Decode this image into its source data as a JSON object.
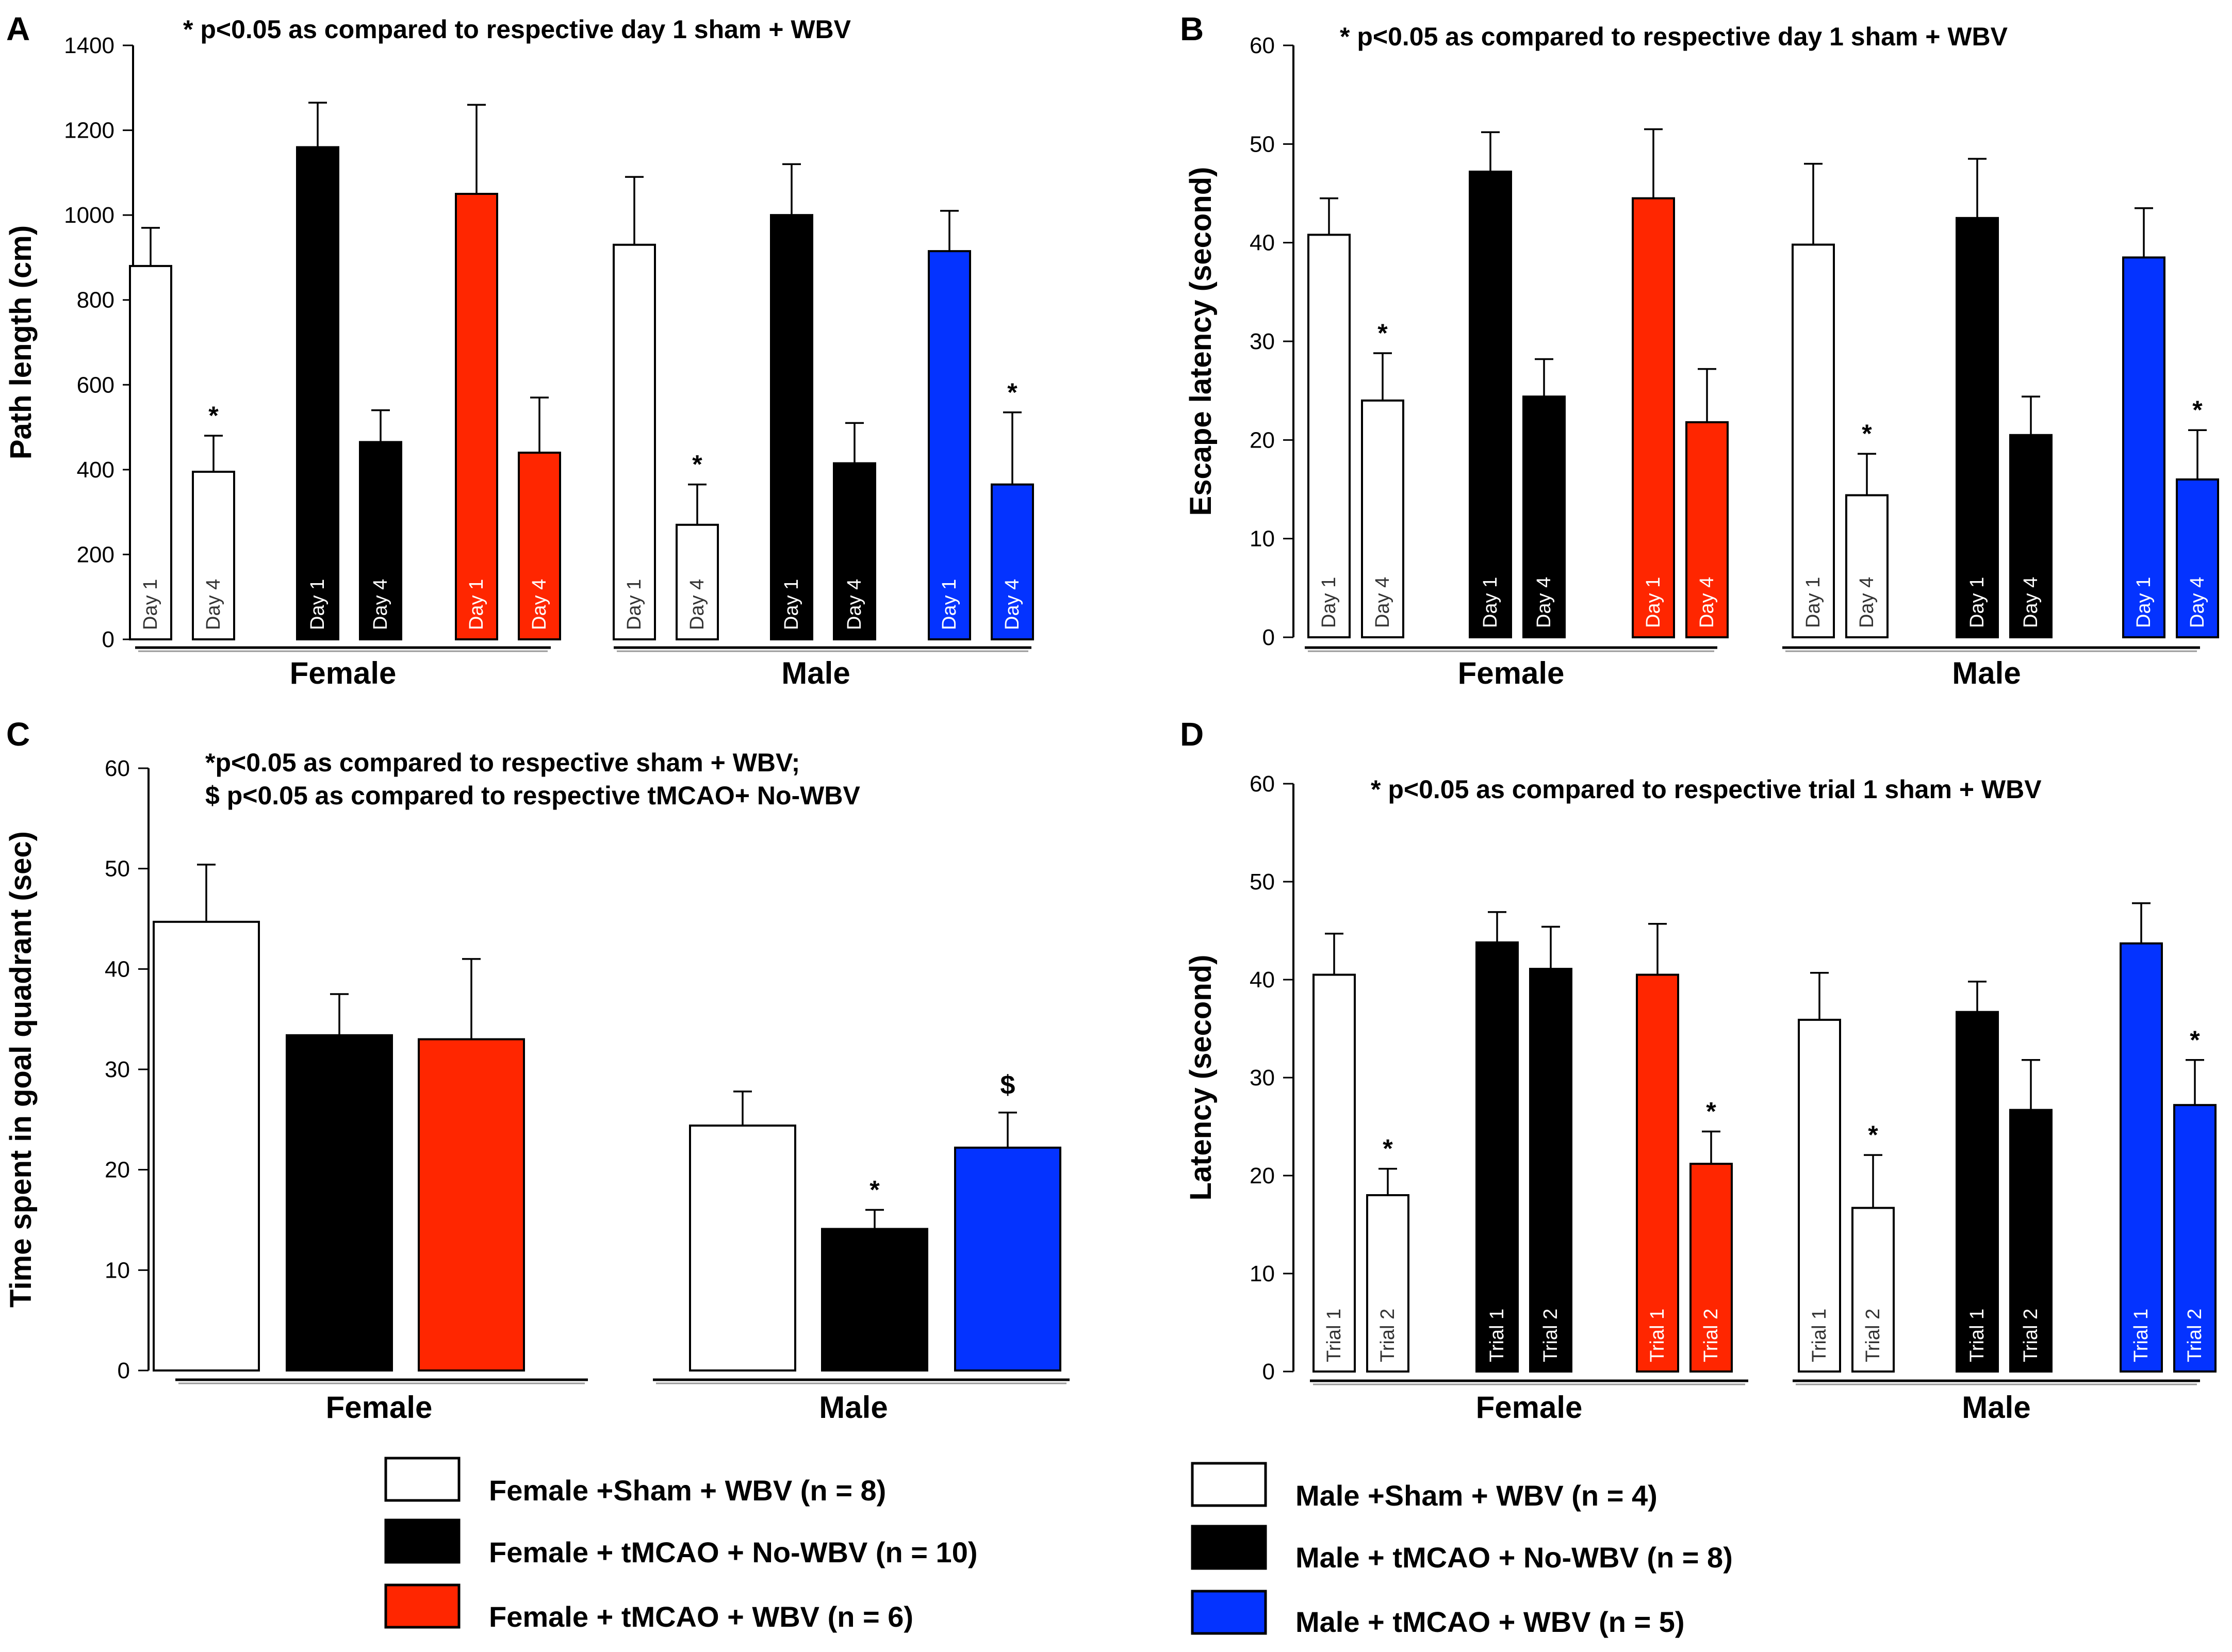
{
  "colors": {
    "white": "#ffffff",
    "black": "#000000",
    "red": "#ff2600",
    "blue": "#0433ff"
  },
  "chart_data": [
    {
      "panel": "A",
      "type": "bar",
      "note": "* p<0.05 as compared to respective  day 1 sham + WBV",
      "ylabel": "Path length (cm)",
      "ylim": [
        0,
        1400
      ],
      "yticks": [
        "0",
        "200",
        "400",
        "600",
        "800",
        "1000",
        "1200",
        "1400"
      ],
      "groups": [
        "Female",
        "Male"
      ],
      "bars": [
        {
          "label": "Day 1",
          "value": 880,
          "error": 90,
          "color": "white",
          "star": ""
        },
        {
          "label": "Day 4",
          "value": 395,
          "error": 85,
          "color": "white",
          "star": "*"
        },
        {
          "label": "Day 1",
          "value": 1160,
          "error": 105,
          "color": "black",
          "star": ""
        },
        {
          "label": "Day 4",
          "value": 465,
          "error": 75,
          "color": "black",
          "star": ""
        },
        {
          "label": "Day 1",
          "value": 1050,
          "error": 210,
          "color": "red",
          "star": ""
        },
        {
          "label": "Day 4",
          "value": 440,
          "error": 130,
          "color": "red",
          "star": ""
        },
        {
          "label": "Day 1",
          "value": 930,
          "error": 160,
          "color": "white",
          "star": ""
        },
        {
          "label": "Day 4",
          "value": 270,
          "error": 95,
          "color": "white",
          "star": "*"
        },
        {
          "label": "Day 1",
          "value": 1000,
          "error": 120,
          "color": "black",
          "star": ""
        },
        {
          "label": "Day 4",
          "value": 415,
          "error": 95,
          "color": "black",
          "star": ""
        },
        {
          "label": "Day 1",
          "value": 915,
          "error": 95,
          "color": "blue",
          "star": ""
        },
        {
          "label": "Day 4",
          "value": 365,
          "error": 170,
          "color": "blue",
          "star": "*"
        }
      ]
    },
    {
      "panel": "B",
      "type": "bar",
      "note": "* p<0.05 as compared to respective  day 1 sham + WBV",
      "ylabel": "Escape latency (second)",
      "ylim": [
        0,
        60
      ],
      "yticks": [
        "0",
        "10",
        "20",
        "30",
        "40",
        "50",
        "60"
      ],
      "groups": [
        "Female",
        "Male"
      ],
      "bars": [
        {
          "label": "Day 1",
          "value": 40.8,
          "error": 3.7,
          "color": "white",
          "star": ""
        },
        {
          "label": "Day 4",
          "value": 24,
          "error": 4.8,
          "color": "white",
          "star": "*"
        },
        {
          "label": "Day 1",
          "value": 47.2,
          "error": 4.0,
          "color": "black",
          "star": ""
        },
        {
          "label": "Day 4",
          "value": 24.4,
          "error": 3.8,
          "color": "black",
          "star": ""
        },
        {
          "label": "Day 1",
          "value": 44.5,
          "error": 7.0,
          "color": "red",
          "star": ""
        },
        {
          "label": "Day 4",
          "value": 21.8,
          "error": 5.4,
          "color": "red",
          "star": ""
        },
        {
          "label": "Day 1",
          "value": 39.8,
          "error": 8.2,
          "color": "white",
          "star": ""
        },
        {
          "label": "Day 4",
          "value": 14.4,
          "error": 4.2,
          "color": "white",
          "star": "*"
        },
        {
          "label": "Day 1",
          "value": 42.5,
          "error": 6.0,
          "color": "black",
          "star": ""
        },
        {
          "label": "Day 4",
          "value": 20.5,
          "error": 3.9,
          "color": "black",
          "star": ""
        },
        {
          "label": "Day 1",
          "value": 38.5,
          "error": 5.0,
          "color": "blue",
          "star": ""
        },
        {
          "label": "Day 4",
          "value": 16,
          "error": 5.0,
          "color": "blue",
          "star": "*"
        }
      ]
    },
    {
      "panel": "C",
      "type": "bar",
      "note": "*p<0.05 as compared to respective  sham + WBV;",
      "note2": "$ p<0.05 as compared to respective  tMCAO+ No-WBV",
      "ylabel": "Time spent in goal quadrant (sec)",
      "ylim": [
        0,
        60
      ],
      "yticks": [
        "0",
        "10",
        "20",
        "30",
        "40",
        "50",
        "60"
      ],
      "groups": [
        "Female",
        "Male"
      ],
      "bars": [
        {
          "label": "",
          "value": 44.7,
          "error": 5.7,
          "color": "white",
          "star": ""
        },
        {
          "label": "",
          "value": 33.4,
          "error": 4.1,
          "color": "black",
          "star": ""
        },
        {
          "label": "",
          "value": 33.0,
          "error": 8.0,
          "color": "red",
          "star": ""
        },
        {
          "label": "",
          "value": 24.4,
          "error": 3.4,
          "color": "white",
          "star": ""
        },
        {
          "label": "",
          "value": 14.1,
          "error": 1.9,
          "color": "black",
          "star": "*"
        },
        {
          "label": "",
          "value": 22.2,
          "error": 3.5,
          "color": "blue",
          "star": "$"
        }
      ]
    },
    {
      "panel": "D",
      "type": "bar",
      "note": "* p<0.05 as compared to respective  trial 1 sham + WBV",
      "ylabel": "Latency (second)",
      "ylim": [
        0,
        60
      ],
      "yticks": [
        "0",
        "10",
        "20",
        "30",
        "40",
        "50",
        "60"
      ],
      "groups": [
        "Female",
        "Male"
      ],
      "bars": [
        {
          "label": "Trial 1",
          "value": 40.5,
          "error": 4.2,
          "color": "white",
          "star": ""
        },
        {
          "label": "Trial 2",
          "value": 18,
          "error": 2.7,
          "color": "white",
          "star": "*"
        },
        {
          "label": "Trial 1",
          "value": 43.8,
          "error": 3.1,
          "color": "black",
          "star": ""
        },
        {
          "label": "Trial 2",
          "value": 41.1,
          "error": 4.3,
          "color": "black",
          "star": ""
        },
        {
          "label": "Trial 1",
          "value": 40.5,
          "error": 5.2,
          "color": "red",
          "star": ""
        },
        {
          "label": "Trial 2",
          "value": 21.2,
          "error": 3.3,
          "color": "red",
          "star": "*"
        },
        {
          "label": "Trial 1",
          "value": 35.9,
          "error": 4.8,
          "color": "white",
          "star": ""
        },
        {
          "label": "Trial 2",
          "value": 16.7,
          "error": 5.4,
          "color": "white",
          "star": "*"
        },
        {
          "label": "Trial 1",
          "value": 36.7,
          "error": 3.1,
          "color": "black",
          "star": ""
        },
        {
          "label": "Trial 2",
          "value": 26.7,
          "error": 5.1,
          "color": "black",
          "star": ""
        },
        {
          "label": "Trial 1",
          "value": 43.7,
          "error": 4.1,
          "color": "blue",
          "star": ""
        },
        {
          "label": "Trial 2",
          "value": 27.2,
          "error": 4.6,
          "color": "blue",
          "star": "*"
        }
      ]
    }
  ],
  "legend": [
    {
      "label": "Female +Sham + WBV (n = 8)",
      "color": "white"
    },
    {
      "label": "Female + tMCAO + No-WBV (n = 10)",
      "color": "black"
    },
    {
      "label": "Female + tMCAO + WBV (n = 6)",
      "color": "red"
    },
    {
      "label": "Male +Sham + WBV (n = 4)",
      "color": "white"
    },
    {
      "label": "Male + tMCAO + No-WBV (n = 8)",
      "color": "black"
    },
    {
      "label": "Male + tMCAO + WBV (n = 5)",
      "color": "blue"
    }
  ]
}
